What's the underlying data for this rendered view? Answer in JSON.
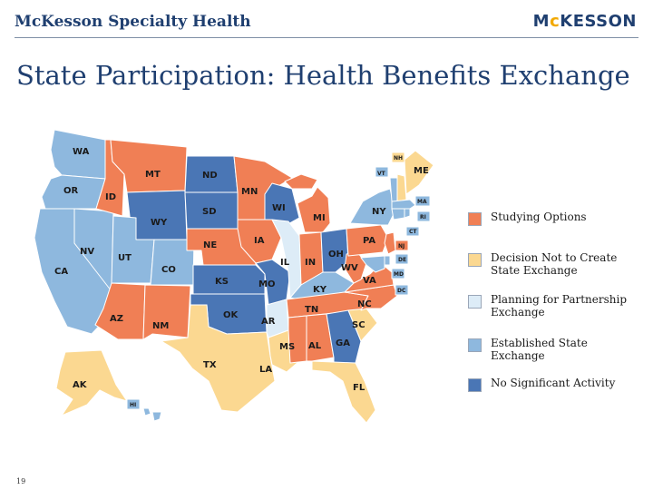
{
  "header": {
    "brand_left": "McKesson Specialty Health",
    "brand_right_prefix": "M",
    "brand_right_dot": "c",
    "brand_right_suffix": "KESSON"
  },
  "title": "State Participation: Health Benefits Exchange",
  "page_number": "19",
  "colors": {
    "studying": "#f07f55",
    "decision_not": "#fbd891",
    "planning": "#ddecf7",
    "established": "#8eb8de",
    "no_activity": "#4a76b5"
  },
  "legend": [
    {
      "key": "studying",
      "label": "Studying Options"
    },
    {
      "key": "decision_not",
      "label": "Decision Not to Create State Exchange"
    },
    {
      "key": "planning",
      "label": "Planning for Partnership Exchange"
    },
    {
      "key": "established",
      "label": "Established State Exchange"
    },
    {
      "key": "no_activity",
      "label": "No Significant Activity"
    }
  ],
  "states": [
    {
      "abbr": "WA",
      "status": "established"
    },
    {
      "abbr": "OR",
      "status": "established"
    },
    {
      "abbr": "CA",
      "status": "established"
    },
    {
      "abbr": "NV",
      "status": "established"
    },
    {
      "abbr": "ID",
      "status": "studying"
    },
    {
      "abbr": "MT",
      "status": "studying"
    },
    {
      "abbr": "WY",
      "status": "no_activity"
    },
    {
      "abbr": "UT",
      "status": "established"
    },
    {
      "abbr": "CO",
      "status": "established"
    },
    {
      "abbr": "AZ",
      "status": "studying"
    },
    {
      "abbr": "NM",
      "status": "studying"
    },
    {
      "abbr": "ND",
      "status": "no_activity"
    },
    {
      "abbr": "SD",
      "status": "no_activity"
    },
    {
      "abbr": "NE",
      "status": "studying"
    },
    {
      "abbr": "KS",
      "status": "no_activity"
    },
    {
      "abbr": "OK",
      "status": "no_activity"
    },
    {
      "abbr": "TX",
      "status": "decision_not"
    },
    {
      "abbr": "MN",
      "status": "studying"
    },
    {
      "abbr": "IA",
      "status": "studying"
    },
    {
      "abbr": "MO",
      "status": "no_activity"
    },
    {
      "abbr": "AR",
      "status": "planning"
    },
    {
      "abbr": "LA",
      "status": "decision_not"
    },
    {
      "abbr": "WI",
      "status": "no_activity"
    },
    {
      "abbr": "IL",
      "status": "planning"
    },
    {
      "abbr": "MI",
      "status": "studying"
    },
    {
      "abbr": "IN",
      "status": "studying"
    },
    {
      "abbr": "OH",
      "status": "no_activity"
    },
    {
      "abbr": "KY",
      "status": "established"
    },
    {
      "abbr": "TN",
      "status": "studying"
    },
    {
      "abbr": "MS",
      "status": "studying"
    },
    {
      "abbr": "AL",
      "status": "studying"
    },
    {
      "abbr": "GA",
      "status": "no_activity"
    },
    {
      "abbr": "FL",
      "status": "decision_not"
    },
    {
      "abbr": "SC",
      "status": "decision_not"
    },
    {
      "abbr": "NC",
      "status": "studying"
    },
    {
      "abbr": "VA",
      "status": "studying"
    },
    {
      "abbr": "WV",
      "status": "studying"
    },
    {
      "abbr": "PA",
      "status": "studying"
    },
    {
      "abbr": "NY",
      "status": "established"
    },
    {
      "abbr": "ME",
      "status": "decision_not"
    },
    {
      "abbr": "VT",
      "status": "established"
    },
    {
      "abbr": "NH",
      "status": "decision_not"
    },
    {
      "abbr": "MA",
      "status": "established"
    },
    {
      "abbr": "RI",
      "status": "established"
    },
    {
      "abbr": "CT",
      "status": "established"
    },
    {
      "abbr": "NJ",
      "status": "studying"
    },
    {
      "abbr": "DE",
      "status": "established"
    },
    {
      "abbr": "MD",
      "status": "established"
    },
    {
      "abbr": "DC",
      "status": "established"
    },
    {
      "abbr": "AK",
      "status": "decision_not"
    },
    {
      "abbr": "HI",
      "status": "established"
    }
  ]
}
